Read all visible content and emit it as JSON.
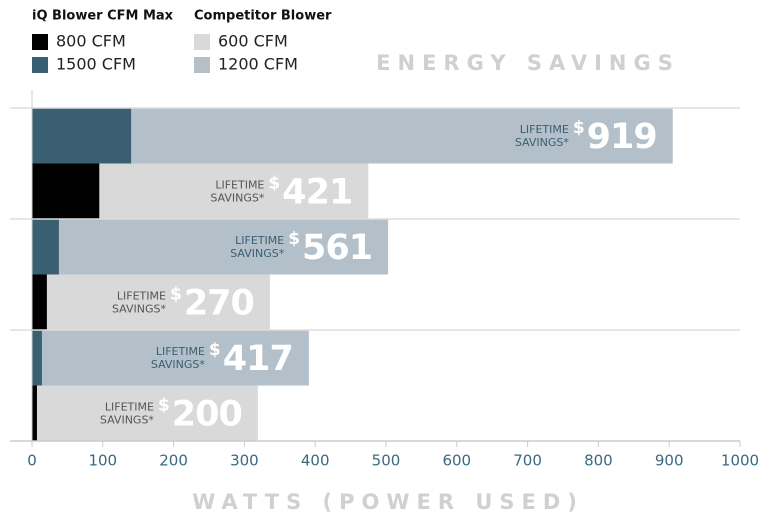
{
  "chart_data": {
    "type": "bar",
    "orientation": "horizontal",
    "title": "ENERGY SAVINGS",
    "xlabel": "WATTS (POWER USED)",
    "categories": [
      null,
      null,
      null
    ],
    "legend_groups": [
      "iQ Blower CFM Max",
      "Competitor Blower"
    ],
    "series": [
      {
        "name": "800 CFM",
        "group": 0,
        "color": "#000000",
        "values": [
          95,
          21,
          7
        ]
      },
      {
        "name": "1500 CFM",
        "group": 0,
        "color": "#3a5f72",
        "values": [
          140,
          38,
          14
        ]
      },
      {
        "name": "600 CFM",
        "group": 1,
        "color": "#d9d9d9",
        "values": [
          475,
          336,
          319
        ],
        "savings_values": [
          421,
          270,
          200
        ]
      },
      {
        "name": "1200 CFM",
        "group": 1,
        "color": "#b3c0ca",
        "values": [
          905,
          503,
          391
        ],
        "savings_values": [
          919,
          561,
          417
        ]
      }
    ],
    "savings_label": [
      "LIFETIME",
      "SAVINGS*"
    ],
    "savings_currency": "$",
    "xlim": [
      0,
      1000
    ],
    "xticks": [
      0,
      100,
      200,
      300,
      400,
      500,
      600,
      700,
      800,
      900,
      1000
    ]
  }
}
